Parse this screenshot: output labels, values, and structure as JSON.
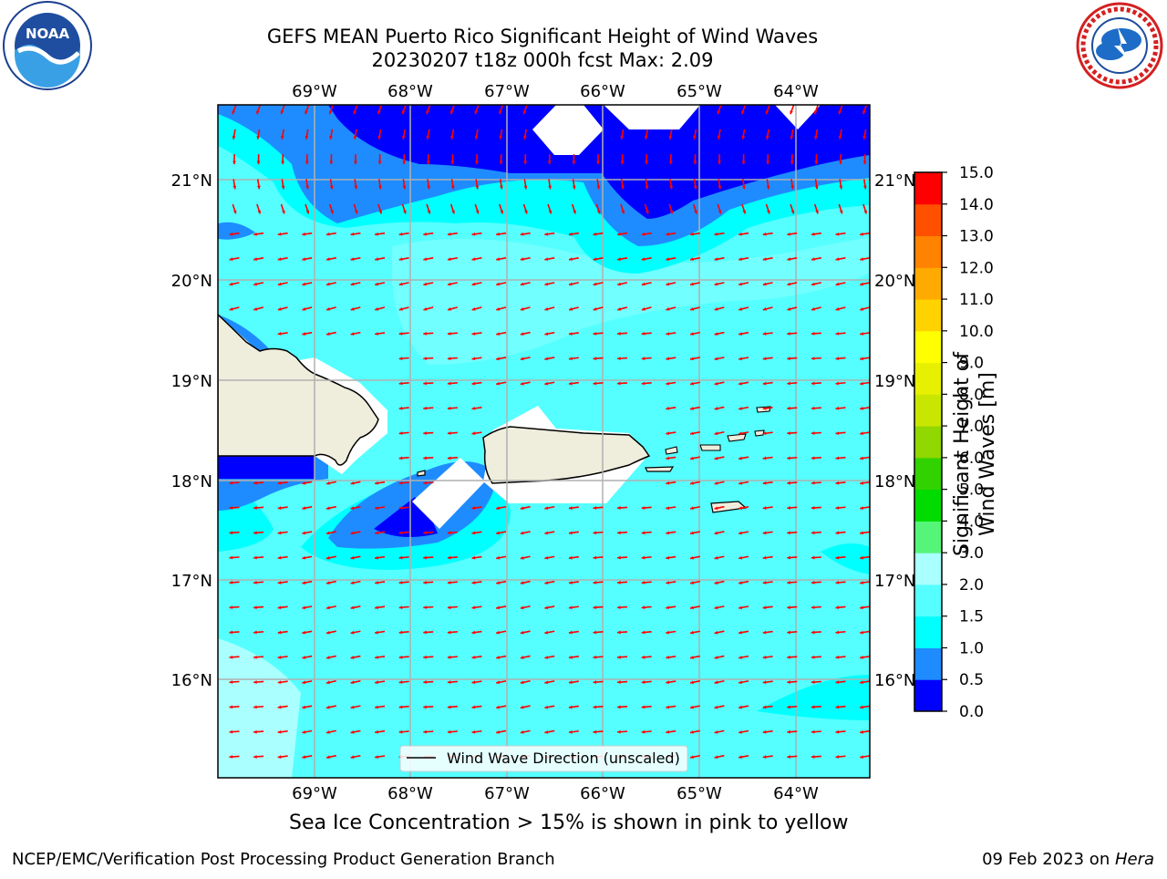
{
  "header": {
    "title_line1": "GEFS MEAN Puerto Rico Significant Height of Wind Waves",
    "title_line2": "20230207 t18z 000h fcst   Max: 2.09"
  },
  "logos": {
    "left": {
      "text": "NOAA",
      "ring_text": "NATIONAL OCEANIC AND ATMOSPHERIC ADMINISTRATION · U.S. DEPARTMENT OF COMMERCE"
    },
    "right": {
      "ring_text": "NATIONAL WEATHER SERVICE"
    }
  },
  "map": {
    "lon_labels": [
      "69°W",
      "68°W",
      "67°W",
      "66°W",
      "65°W",
      "64°W"
    ],
    "lat_labels": [
      "21°N",
      "20°N",
      "19°N",
      "18°N",
      "17°N",
      "16°N"
    ],
    "legend_label": "Wind Wave Direction (unscaled)",
    "colors": {
      "land": "#efeddc",
      "arrow": "#ff0000",
      "grid": "#b0b0b0"
    }
  },
  "colorbar": {
    "label": "Significant Height of Wind Waves [m]",
    "ticks": [
      "0.0",
      "0.5",
      "1.0",
      "1.5",
      "2.0",
      "3.0",
      "4.0",
      "5.0",
      "6.0",
      "7.0",
      "8.0",
      "9.0",
      "10.0",
      "11.0",
      "12.0",
      "13.0",
      "14.0",
      "15.0"
    ],
    "colors": [
      "#0000ff",
      "#1e8cff",
      "#00ffff",
      "#55ffff",
      "#aaffff",
      "#55f57a",
      "#00dc00",
      "#32d200",
      "#91d700",
      "#c8e600",
      "#e6f000",
      "#ffff00",
      "#ffd200",
      "#ffaa00",
      "#ff8200",
      "#ff5000",
      "#ff0000"
    ]
  },
  "caption": "Sea Ice Concentration > 15% is shown in pink to yellow",
  "footer": {
    "left": "NCEP/EMC/Verification Post Processing Product Generation Branch",
    "right_prefix": "09 Feb 2023 on ",
    "right_host": "Hera"
  }
}
